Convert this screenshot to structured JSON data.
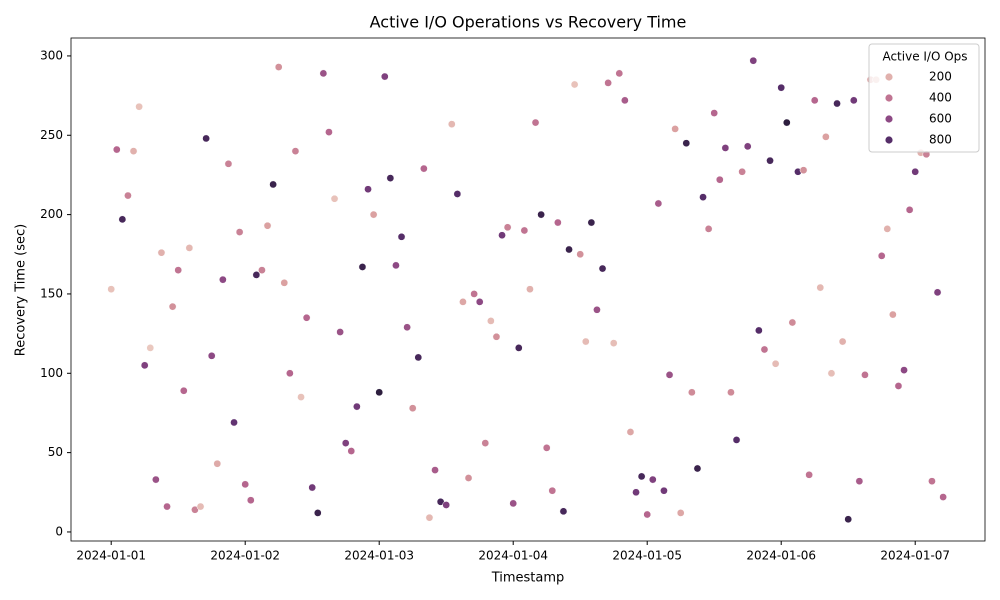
{
  "chart_data": {
    "type": "scatter",
    "title": "Active I/O Operations vs Recovery Time",
    "xlabel": "Timestamp",
    "ylabel": "Recovery Time (sec)",
    "x": [
      0,
      1,
      2,
      3,
      4,
      5,
      6,
      7,
      8,
      9,
      10,
      11,
      12,
      13,
      14,
      15,
      16,
      17,
      18,
      19,
      20,
      21,
      22,
      23,
      24,
      25,
      26,
      27,
      28,
      29,
      30,
      31,
      32,
      33,
      34,
      35,
      36,
      37,
      38,
      39,
      40,
      41,
      42,
      43,
      44,
      45,
      46,
      47,
      48,
      49,
      50,
      51,
      52,
      53,
      54,
      55,
      56,
      57,
      58,
      59,
      60,
      61,
      62,
      63,
      64,
      65,
      66,
      67,
      68,
      69,
      70,
      71,
      72,
      73,
      74,
      75,
      76,
      77,
      78,
      79,
      80,
      81,
      82,
      83,
      84,
      85,
      86,
      87,
      88,
      89,
      90,
      91,
      92,
      93,
      94,
      95,
      96,
      97,
      98,
      99,
      100,
      101,
      102,
      103,
      104,
      105,
      106,
      107,
      108,
      109,
      110,
      111,
      112,
      113,
      114,
      115,
      116,
      117,
      118,
      119,
      120,
      121,
      122,
      123,
      124,
      125,
      126,
      127,
      128,
      129,
      130,
      131,
      132,
      133,
      134,
      135,
      136,
      137,
      138,
      139,
      140,
      141,
      142,
      143,
      144,
      145,
      146,
      147,
      148,
      149
    ],
    "y": [
      153,
      241,
      197,
      212,
      240,
      268,
      105,
      116,
      33,
      176,
      16,
      142,
      165,
      89,
      179,
      14,
      16,
      248,
      111,
      43,
      159,
      232,
      69,
      189,
      30,
      20,
      162,
      165,
      193,
      219,
      293,
      157,
      100,
      240,
      85,
      135,
      28,
      12,
      289,
      252,
      210,
      126,
      56,
      51,
      79,
      167,
      216,
      200,
      88,
      287,
      223,
      168,
      186,
      129,
      78,
      110,
      229,
      9,
      39,
      19,
      17,
      257,
      213,
      145,
      34,
      150,
      145,
      56,
      133,
      123,
      187,
      192,
      18,
      116,
      190,
      153,
      258,
      200,
      53,
      26,
      195,
      13,
      178,
      282,
      175,
      120,
      195,
      140,
      166,
      283,
      119,
      289,
      272,
      63,
      25,
      35,
      11,
      33,
      207,
      26,
      99,
      254,
      12,
      245,
      88,
      40,
      211,
      191,
      264,
      222,
      242,
      88,
      58,
      227,
      243,
      297,
      127,
      115,
      234,
      106,
      280,
      258,
      132,
      227,
      228,
      36,
      272,
      154,
      249,
      100,
      270,
      120,
      8,
      272,
      32,
      99,
      285,
      285,
      174,
      191,
      137,
      92,
      102,
      203,
      227,
      239,
      238,
      32,
      151,
      22
    ],
    "hue": [
      150,
      450,
      850,
      350,
      200,
      150,
      650,
      130,
      550,
      200,
      450,
      300,
      400,
      450,
      180,
      350,
      170,
      850,
      600,
      220,
      600,
      350,
      750,
      350,
      450,
      450,
      850,
      350,
      250,
      900,
      300,
      250,
      450,
      350,
      150,
      450,
      700,
      900,
      550,
      450,
      150,
      550,
      650,
      450,
      700,
      900,
      700,
      250,
      950,
      650,
      850,
      600,
      800,
      550,
      300,
      850,
      450,
      180,
      500,
      850,
      650,
      180,
      800,
      230,
      300,
      400,
      600,
      350,
      170,
      300,
      700,
      350,
      550,
      850,
      400,
      200,
      400,
      900,
      400,
      400,
      450,
      850,
      900,
      150,
      300,
      170,
      900,
      550,
      850,
      400,
      160,
      400,
      500,
      230,
      700,
      850,
      450,
      650,
      500,
      700,
      550,
      250,
      230,
      900,
      320,
      900,
      800,
      350,
      450,
      450,
      650,
      320,
      800,
      350,
      650,
      650,
      800,
      400,
      850,
      170,
      800,
      950,
      320,
      800,
      300,
      400,
      450,
      180,
      250,
      160,
      850,
      200,
      900,
      700,
      500,
      400,
      250,
      170,
      450,
      200,
      250,
      450,
      600,
      450,
      700,
      200,
      350,
      400,
      650,
      450
    ],
    "hue_lim": [
      100,
      950
    ],
    "palette": [
      "#eed2c6",
      "#d89a9c",
      "#b8688f",
      "#8a4783",
      "#5a2f6e",
      "#2d1e3e"
    ],
    "xlim": [
      -7.2,
      156.5
    ],
    "ylim": [
      -5.7,
      311.3
    ],
    "xticks": [
      {
        "value": 0,
        "label": "2024-01-01"
      },
      {
        "value": 24,
        "label": "2024-01-02"
      },
      {
        "value": 48,
        "label": "2024-01-03"
      },
      {
        "value": 72,
        "label": "2024-01-04"
      },
      {
        "value": 96,
        "label": "2024-01-05"
      },
      {
        "value": 120,
        "label": "2024-01-06"
      },
      {
        "value": 144,
        "label": "2024-01-07"
      }
    ],
    "yticks": [
      0,
      50,
      100,
      150,
      200,
      250,
      300
    ],
    "legend": {
      "title": "Active I/O Ops",
      "values": [
        200,
        400,
        600,
        800
      ],
      "loc": "upper right"
    }
  }
}
